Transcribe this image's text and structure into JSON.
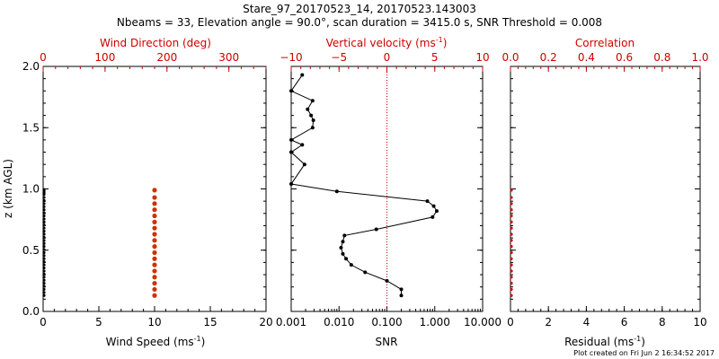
{
  "header": {
    "title": "Stare_97_20170523_14, 20170523.143003",
    "subtitle": "Nbeams = 33, Elevation angle = 90.0°, scan duration = 3415.0 s, SNR Threshold = 0.008"
  },
  "footer": {
    "plot_created": "Plot created on Fri Jun  2 16:34:52 2017"
  },
  "colors": {
    "axis": "#000000",
    "accent": "#cc0000",
    "wind_dir_points": "#cc3300",
    "background": "#ffffff"
  },
  "chart_data": [
    {
      "type": "scatter",
      "ylabel": "z (km AGL)",
      "ylim": [
        0,
        2
      ],
      "yticks": [
        "0.0",
        "0.5",
        "1.0",
        "1.5",
        "2.0"
      ],
      "bottom_axis": {
        "label": "Wind Speed (ms",
        "label_sup": "-1",
        "label_tail": ")",
        "range": [
          0,
          20
        ],
        "ticks": [
          "0",
          "5",
          "10",
          "15",
          "20"
        ]
      },
      "top_axis": {
        "label": "Wind Direction (deg)",
        "range": [
          0,
          360
        ],
        "ticks": [
          "0",
          "100",
          "200",
          "300"
        ]
      },
      "series": [
        {
          "name": "Wind Direction",
          "axis": "top",
          "x": [
            180,
            180,
            180,
            180,
            180,
            180,
            180,
            180,
            180,
            180,
            180,
            180,
            180,
            180,
            180,
            180,
            180,
            180
          ],
          "y": [
            0.13,
            0.18,
            0.23,
            0.28,
            0.33,
            0.38,
            0.43,
            0.48,
            0.53,
            0.58,
            0.63,
            0.68,
            0.73,
            0.78,
            0.83,
            0.88,
            0.93,
            0.99
          ]
        },
        {
          "name": "Wind Speed",
          "axis": "bottom",
          "x": [
            0,
            0,
            0,
            0,
            0,
            0,
            0,
            0,
            0,
            0,
            0,
            0,
            0,
            0,
            0,
            0,
            0,
            0,
            0,
            0,
            0,
            0,
            0,
            0,
            0,
            0,
            0,
            0,
            0,
            0,
            0,
            0,
            0,
            0,
            0,
            0,
            0
          ],
          "y": [
            0.13,
            0.155,
            0.18,
            0.205,
            0.23,
            0.255,
            0.28,
            0.305,
            0.33,
            0.355,
            0.38,
            0.405,
            0.43,
            0.455,
            0.48,
            0.505,
            0.53,
            0.555,
            0.58,
            0.605,
            0.63,
            0.655,
            0.68,
            0.705,
            0.73,
            0.755,
            0.78,
            0.805,
            0.83,
            0.855,
            0.88,
            0.905,
            0.93,
            0.955,
            0.97,
            0.985,
            0.995
          ]
        }
      ]
    },
    {
      "type": "line",
      "ylim": [
        0,
        2
      ],
      "bottom_axis": {
        "label": "SNR",
        "scale": "log",
        "range": [
          0.001,
          10
        ],
        "ticks": [
          "0.001",
          "0.010",
          "0.100",
          "1.000",
          "10.000"
        ]
      },
      "top_axis": {
        "label": "Vertical velocity (ms",
        "label_sup": "-1",
        "label_tail": ")",
        "range": [
          -10,
          10
        ],
        "ticks": [
          "−10",
          "−5",
          "0",
          "5",
          "10"
        ]
      },
      "reference_line": {
        "axis": "top",
        "value": 0,
        "style": "dotted"
      },
      "series": [
        {
          "name": "SNR",
          "axis": "bottom",
          "x": [
            0.2,
            0.2,
            0.1,
            0.035,
            0.018,
            0.014,
            0.012,
            0.011,
            0.012,
            0.013,
            0.06,
            0.9,
            1.1,
            0.95,
            0.7,
            0.009,
            0.001,
            0.0019,
            0.001,
            0.0017,
            0.001,
            0.0028,
            0.0029,
            0.0026,
            0.0022,
            0.0028,
            0.001,
            0.0017
          ],
          "y": [
            0.13,
            0.18,
            0.25,
            0.32,
            0.38,
            0.43,
            0.47,
            0.52,
            0.57,
            0.62,
            0.67,
            0.77,
            0.82,
            0.86,
            0.9,
            0.98,
            1.04,
            1.2,
            1.3,
            1.36,
            1.4,
            1.5,
            1.56,
            1.6,
            1.65,
            1.72,
            1.8,
            1.93
          ]
        }
      ]
    },
    {
      "type": "scatter",
      "ylim": [
        0,
        2
      ],
      "bottom_axis": {
        "label": "Residual (ms",
        "label_sup": "-1",
        "label_tail": ")",
        "range": [
          0,
          10
        ],
        "ticks": [
          "0",
          "2",
          "4",
          "6",
          "8",
          "10"
        ]
      },
      "top_axis": {
        "label": "Correlation",
        "range": [
          0,
          1
        ],
        "ticks": [
          "0.0",
          "0.2",
          "0.4",
          "0.6",
          "0.8",
          "1.0"
        ]
      },
      "series": [
        {
          "name": "Residual",
          "axis": "bottom",
          "x": [
            0,
            0,
            0,
            0,
            0,
            0,
            0,
            0,
            0,
            0,
            0,
            0,
            0,
            0,
            0,
            0,
            0,
            0
          ],
          "y": [
            0.13,
            0.18,
            0.23,
            0.28,
            0.33,
            0.38,
            0.43,
            0.48,
            0.53,
            0.58,
            0.63,
            0.68,
            0.73,
            0.78,
            0.83,
            0.88,
            0.93,
            0.99
          ]
        }
      ]
    }
  ]
}
